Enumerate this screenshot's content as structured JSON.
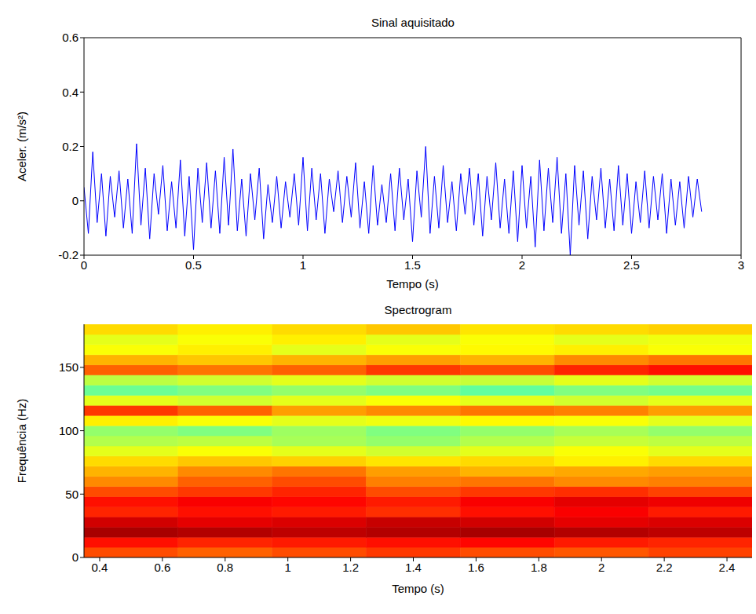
{
  "chart_data": [
    {
      "type": "line",
      "title": "Sinal aquisitado",
      "xlabel": "Tempo (s)",
      "ylabel": "Aceler. (m/s²)",
      "xlim": [
        0,
        3
      ],
      "xticks": [
        0,
        0.5,
        1,
        1.5,
        2,
        2.5,
        3
      ],
      "ylim": [
        -0.2,
        0.6
      ],
      "yticks": [
        -0.2,
        0,
        0.2,
        0.4,
        0.6
      ],
      "grid": false,
      "series": [
        {
          "color": "#0000ff",
          "x": [
            0,
            0.02,
            0.04,
            0.06,
            0.08,
            0.1,
            0.12,
            0.14,
            0.16,
            0.18,
            0.2,
            0.22,
            0.24,
            0.26,
            0.28,
            0.3,
            0.32,
            0.34,
            0.36,
            0.38,
            0.4,
            0.42,
            0.44,
            0.46,
            0.48,
            0.5,
            0.52,
            0.54,
            0.56,
            0.58,
            0.6,
            0.62,
            0.64,
            0.66,
            0.68,
            0.7,
            0.72,
            0.74,
            0.76,
            0.78,
            0.8,
            0.82,
            0.84,
            0.86,
            0.88,
            0.9,
            0.92,
            0.94,
            0.96,
            0.98,
            1,
            1.02,
            1.04,
            1.06,
            1.08,
            1.1,
            1.12,
            1.14,
            1.16,
            1.18,
            1.2,
            1.22,
            1.24,
            1.26,
            1.28,
            1.3,
            1.32,
            1.34,
            1.36,
            1.38,
            1.4,
            1.42,
            1.44,
            1.46,
            1.48,
            1.5,
            1.52,
            1.54,
            1.56,
            1.58,
            1.6,
            1.62,
            1.64,
            1.66,
            1.68,
            1.7,
            1.72,
            1.74,
            1.76,
            1.78,
            1.8,
            1.82,
            1.84,
            1.86,
            1.88,
            1.9,
            1.92,
            1.94,
            1.96,
            1.98,
            2,
            2.02,
            2.04,
            2.06,
            2.08,
            2.1,
            2.12,
            2.14,
            2.16,
            2.18,
            2.2,
            2.22,
            2.24,
            2.26,
            2.28,
            2.3,
            2.32,
            2.34,
            2.36,
            2.38,
            2.4,
            2.42,
            2.44,
            2.46,
            2.48,
            2.5,
            2.52,
            2.54,
            2.56,
            2.58,
            2.6,
            2.62,
            2.64,
            2.66,
            2.68,
            2.7,
            2.72,
            2.74,
            2.76,
            2.78,
            2.8,
            2.82
          ],
          "values": [
            0.05,
            -0.12,
            0.18,
            -0.08,
            0.1,
            -0.13,
            0.09,
            -0.06,
            0.11,
            -0.1,
            0.08,
            -0.12,
            0.21,
            -0.09,
            0.12,
            -0.14,
            0.1,
            -0.05,
            0.13,
            -0.11,
            0.07,
            -0.1,
            0.15,
            -0.13,
            0.09,
            -0.18,
            0.12,
            -0.08,
            0.14,
            -0.1,
            0.11,
            -0.12,
            0.16,
            -0.09,
            0.19,
            -0.11,
            0.08,
            -0.13,
            0.1,
            -0.07,
            0.12,
            -0.14,
            0.06,
            -0.08,
            0.09,
            -0.1,
            0.07,
            -0.06,
            0.1,
            -0.09,
            0.16,
            -0.11,
            0.12,
            -0.07,
            0.1,
            -0.12,
            0.08,
            -0.04,
            0.11,
            -0.08,
            0.09,
            -0.06,
            0.14,
            -0.1,
            0.07,
            -0.12,
            0.13,
            -0.09,
            0.06,
            -0.08,
            0.1,
            -0.11,
            0.12,
            -0.07,
            0.08,
            -0.15,
            0.11,
            -0.06,
            0.2,
            -0.12,
            0.09,
            -0.1,
            0.13,
            -0.08,
            0.07,
            -0.11,
            0.1,
            -0.05,
            0.12,
            -0.09,
            0.1,
            -0.13,
            0.09,
            -0.07,
            0.14,
            -0.1,
            0.08,
            -0.12,
            0.11,
            -0.15,
            0.13,
            -0.1,
            0.09,
            -0.17,
            0.15,
            -0.11,
            0.12,
            -0.08,
            0.16,
            -0.12,
            0.1,
            -0.2,
            0.13,
            -0.09,
            0.11,
            -0.14,
            0.09,
            -0.07,
            0.12,
            -0.1,
            0.08,
            -0.11,
            0.13,
            -0.09,
            0.1,
            -0.12,
            0.07,
            -0.08,
            0.11,
            -0.1,
            0.09,
            -0.07,
            0.1,
            -0.12,
            0.08,
            -0.09,
            0.07,
            -0.1,
            0.09,
            -0.06,
            0.08,
            -0.04
          ]
        }
      ]
    },
    {
      "type": "heatmap",
      "title": "Spectrogram",
      "xlabel": "Tempo (s)",
      "ylabel": "Frequência (Hz)",
      "xlim": [
        0.35,
        2.48
      ],
      "xticks": [
        0.4,
        0.6,
        0.8,
        1,
        1.2,
        1.4,
        1.6,
        1.8,
        2,
        2.2,
        2.4
      ],
      "ylim": [
        0,
        184
      ],
      "yticks": [
        0,
        50,
        100,
        150
      ],
      "x_edges": [
        0.35,
        0.65,
        0.95,
        1.25,
        1.55,
        1.85,
        2.15,
        2.48
      ],
      "y_edges": [
        0,
        8,
        16,
        24,
        32,
        40,
        48,
        56,
        64,
        72,
        80,
        88,
        96,
        104,
        112,
        120,
        128,
        136,
        144,
        152,
        160,
        168,
        176,
        184
      ],
      "zlim": [
        0,
        1
      ],
      "cells": [
        [
          0.8,
          0.78,
          0.8,
          0.82,
          0.8,
          0.79,
          0.81
        ],
        [
          0.86,
          0.84,
          0.85,
          0.86,
          0.87,
          0.85,
          0.84
        ],
        [
          0.96,
          0.95,
          0.94,
          0.95,
          0.96,
          0.95,
          0.94
        ],
        [
          0.92,
          0.9,
          0.91,
          0.93,
          0.92,
          0.9,
          0.91
        ],
        [
          0.84,
          0.86,
          0.85,
          0.83,
          0.86,
          0.88,
          0.85
        ],
        [
          0.86,
          0.88,
          0.87,
          0.85,
          0.88,
          0.9,
          0.89
        ],
        [
          0.8,
          0.82,
          0.84,
          0.8,
          0.82,
          0.83,
          0.81
        ],
        [
          0.74,
          0.78,
          0.8,
          0.75,
          0.76,
          0.74,
          0.75
        ],
        [
          0.7,
          0.74,
          0.76,
          0.72,
          0.7,
          0.71,
          0.72
        ],
        [
          0.66,
          0.68,
          0.67,
          0.65,
          0.66,
          0.64,
          0.66
        ],
        [
          0.6,
          0.62,
          0.6,
          0.58,
          0.6,
          0.62,
          0.6
        ],
        [
          0.55,
          0.56,
          0.54,
          0.52,
          0.55,
          0.57,
          0.56
        ],
        [
          0.52,
          0.5,
          0.53,
          0.5,
          0.52,
          0.54,
          0.52
        ],
        [
          0.64,
          0.62,
          0.6,
          0.61,
          0.63,
          0.62,
          0.6
        ],
        [
          0.82,
          0.78,
          0.72,
          0.74,
          0.76,
          0.75,
          0.72
        ],
        [
          0.6,
          0.58,
          0.6,
          0.62,
          0.6,
          0.58,
          0.6
        ],
        [
          0.48,
          0.5,
          0.52,
          0.5,
          0.47,
          0.5,
          0.49
        ],
        [
          0.56,
          0.58,
          0.6,
          0.58,
          0.57,
          0.6,
          0.58
        ],
        [
          0.78,
          0.76,
          0.78,
          0.82,
          0.8,
          0.84,
          0.86
        ],
        [
          0.7,
          0.68,
          0.7,
          0.72,
          0.7,
          0.74,
          0.76
        ],
        [
          0.62,
          0.64,
          0.6,
          0.62,
          0.63,
          0.64,
          0.62
        ],
        [
          0.6,
          0.62,
          0.64,
          0.6,
          0.62,
          0.6,
          0.61
        ],
        [
          0.66,
          0.64,
          0.66,
          0.68,
          0.65,
          0.66,
          0.67
        ]
      ]
    }
  ]
}
